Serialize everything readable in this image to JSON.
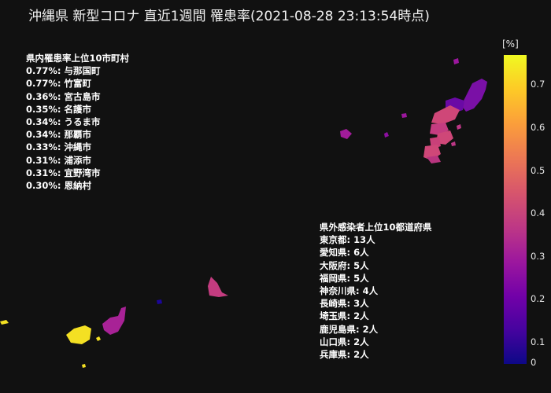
{
  "title": "沖縄県 新型コロナ 直近1週間 罹患率(2021-08-28 23:13:54時点)",
  "top_municipalities": {
    "heading": "県内罹患率上位10市町村",
    "items": [
      "0.77%: 与那国町",
      "0.77%: 竹富町",
      "0.36%: 宮古島市",
      "0.35%: 名護市",
      "0.34%: うるま市",
      "0.34%: 那覇市",
      "0.33%: 沖縄市",
      "0.31%: 浦添市",
      "0.31%: 宜野湾市",
      "0.30%: 恩納村"
    ]
  },
  "outside_prefectures": {
    "heading": "県外感染者上位10都道府県",
    "items": [
      "東京都: 13人",
      "愛知県: 6人",
      "大阪府: 5人",
      "福岡県: 5人",
      "神奈川県: 4人",
      "長崎県: 3人",
      "埼玉県: 2人",
      "鹿児島県: 2人",
      "山口県: 2人",
      "兵庫県: 2人"
    ]
  },
  "colorbar": {
    "unit": "[%]",
    "ticks": [
      "0",
      "0.1",
      "0.2",
      "0.3",
      "0.4",
      "0.5",
      "0.6",
      "0.7"
    ],
    "colors": [
      "#0d0887",
      "#7201a8",
      "#bd3786",
      "#ed7953",
      "#fdca26",
      "#f0f921"
    ]
  }
}
